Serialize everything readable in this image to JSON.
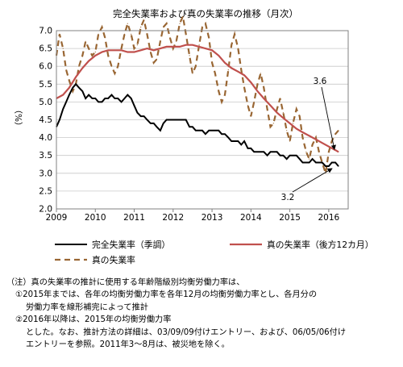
{
  "chart_data": {
    "type": "line",
    "title": "完全失業率および真の失業率の推移（月次）",
    "ylabel": "（%）",
    "xlabel": "",
    "ylim": [
      2.0,
      7.0
    ],
    "y_ticks": [
      "2.0",
      "2.5",
      "3.0",
      "3.5",
      "4.0",
      "4.5",
      "5.0",
      "5.5",
      "6.0",
      "6.5",
      "7.0"
    ],
    "x_ticks": [
      "2009",
      "2010",
      "2011",
      "2012",
      "2013",
      "2014",
      "2015",
      "2016"
    ],
    "xlim": [
      2009.0,
      2016.5
    ],
    "grid": true,
    "legend_position": "bottom",
    "colors": {
      "unemp": "#000000",
      "true12": "#c0504d",
      "true": "#996633"
    },
    "series": [
      {
        "name": "完全失業率（季調）",
        "key": "unemp",
        "style": "solid",
        "x": [
          2009.0,
          2009.08,
          2009.17,
          2009.25,
          2009.33,
          2009.42,
          2009.5,
          2009.58,
          2009.67,
          2009.75,
          2009.83,
          2009.92,
          2010.0,
          2010.08,
          2010.17,
          2010.25,
          2010.33,
          2010.42,
          2010.5,
          2010.58,
          2010.67,
          2010.75,
          2010.83,
          2010.92,
          2011.0,
          2011.08,
          2011.17,
          2011.25,
          2011.33,
          2011.42,
          2011.5,
          2011.58,
          2011.67,
          2011.75,
          2011.83,
          2011.92,
          2012.0,
          2012.08,
          2012.17,
          2012.25,
          2012.33,
          2012.42,
          2012.5,
          2012.58,
          2012.67,
          2012.75,
          2012.83,
          2012.92,
          2013.0,
          2013.08,
          2013.17,
          2013.25,
          2013.33,
          2013.42,
          2013.5,
          2013.58,
          2013.67,
          2013.75,
          2013.83,
          2013.92,
          2014.0,
          2014.08,
          2014.17,
          2014.25,
          2014.33,
          2014.42,
          2014.5,
          2014.58,
          2014.67,
          2014.75,
          2014.83,
          2014.92,
          2015.0,
          2015.08,
          2015.17,
          2015.25,
          2015.33,
          2015.42,
          2015.5,
          2015.58,
          2015.67,
          2015.75,
          2015.83,
          2015.92,
          2016.0,
          2016.08,
          2016.17,
          2016.25
        ],
        "values": [
          4.3,
          4.5,
          4.8,
          5.0,
          5.2,
          5.4,
          5.5,
          5.4,
          5.3,
          5.1,
          5.2,
          5.1,
          5.1,
          5.0,
          5.0,
          5.1,
          5.1,
          5.2,
          5.1,
          5.1,
          5.0,
          5.1,
          5.2,
          5.1,
          4.9,
          4.7,
          4.6,
          4.6,
          4.5,
          4.4,
          4.4,
          4.3,
          4.2,
          4.4,
          4.5,
          4.5,
          4.5,
          4.5,
          4.5,
          4.5,
          4.5,
          4.3,
          4.3,
          4.2,
          4.2,
          4.2,
          4.1,
          4.2,
          4.2,
          4.2,
          4.2,
          4.1,
          4.1,
          4.0,
          3.9,
          3.9,
          3.9,
          3.8,
          3.9,
          3.7,
          3.7,
          3.6,
          3.6,
          3.6,
          3.6,
          3.5,
          3.6,
          3.6,
          3.6,
          3.5,
          3.5,
          3.4,
          3.5,
          3.5,
          3.5,
          3.4,
          3.3,
          3.3,
          3.3,
          3.4,
          3.3,
          3.3,
          3.3,
          3.2,
          3.2,
          3.3,
          3.3,
          3.2
        ]
      },
      {
        "name": "真の失業率（後方12カ月）",
        "key": "true12",
        "style": "solid",
        "x": [
          2009.0,
          2009.17,
          2009.33,
          2009.5,
          2009.67,
          2009.83,
          2010.0,
          2010.17,
          2010.33,
          2010.5,
          2010.67,
          2010.83,
          2011.0,
          2011.17,
          2011.33,
          2011.5,
          2011.67,
          2011.83,
          2012.0,
          2012.17,
          2012.33,
          2012.5,
          2012.67,
          2012.83,
          2013.0,
          2013.17,
          2013.33,
          2013.5,
          2013.67,
          2013.83,
          2014.0,
          2014.17,
          2014.33,
          2014.5,
          2014.67,
          2014.83,
          2015.0,
          2015.17,
          2015.33,
          2015.5,
          2015.67,
          2015.83,
          2016.0,
          2016.17,
          2016.25
        ],
        "values": [
          5.1,
          5.2,
          5.4,
          5.7,
          5.95,
          6.15,
          6.3,
          6.4,
          6.45,
          6.45,
          6.45,
          6.4,
          6.4,
          6.45,
          6.5,
          6.45,
          6.5,
          6.55,
          6.55,
          6.55,
          6.6,
          6.6,
          6.55,
          6.5,
          6.45,
          6.3,
          6.1,
          5.95,
          5.85,
          5.75,
          5.55,
          5.3,
          5.1,
          4.9,
          4.7,
          4.55,
          4.4,
          4.25,
          4.15,
          4.05,
          3.95,
          3.85,
          3.75,
          3.65,
          3.6
        ]
      },
      {
        "name": "真の失業率",
        "key": "true",
        "style": "dashed",
        "x": [
          2009.0,
          2009.08,
          2009.17,
          2009.25,
          2009.33,
          2009.42,
          2009.5,
          2009.58,
          2009.67,
          2009.75,
          2009.83,
          2009.92,
          2010.0,
          2010.08,
          2010.17,
          2010.25,
          2010.33,
          2010.42,
          2010.5,
          2010.58,
          2010.67,
          2010.75,
          2010.83,
          2010.92,
          2011.0,
          2011.08,
          2011.17,
          2011.25,
          2011.33,
          2011.42,
          2011.5,
          2011.58,
          2011.67,
          2011.75,
          2011.83,
          2011.92,
          2012.0,
          2012.08,
          2012.17,
          2012.25,
          2012.33,
          2012.42,
          2012.5,
          2012.58,
          2012.67,
          2012.75,
          2012.83,
          2012.92,
          2013.0,
          2013.08,
          2013.17,
          2013.25,
          2013.33,
          2013.42,
          2013.5,
          2013.58,
          2013.67,
          2013.75,
          2013.83,
          2013.92,
          2014.0,
          2014.08,
          2014.17,
          2014.25,
          2014.33,
          2014.42,
          2014.5,
          2014.58,
          2014.67,
          2014.75,
          2014.83,
          2014.92,
          2015.0,
          2015.08,
          2015.17,
          2015.25,
          2015.33,
          2015.42,
          2015.5,
          2015.58,
          2015.67,
          2015.75,
          2015.83,
          2015.92,
          2016.0,
          2016.08,
          2016.17,
          2016.25
        ],
        "values": [
          6.3,
          6.9,
          6.5,
          5.9,
          5.6,
          5.3,
          5.5,
          6.0,
          6.3,
          6.7,
          6.5,
          6.3,
          6.4,
          6.9,
          7.1,
          6.8,
          6.3,
          6.0,
          5.8,
          6.0,
          6.5,
          6.9,
          7.2,
          6.9,
          6.5,
          6.6,
          7.1,
          7.3,
          6.9,
          6.4,
          6.1,
          6.2,
          6.7,
          7.1,
          7.2,
          6.8,
          6.5,
          6.7,
          7.2,
          7.4,
          6.9,
          6.3,
          5.8,
          6.0,
          6.6,
          7.1,
          7.2,
          6.8,
          6.1,
          5.8,
          5.3,
          5.0,
          5.2,
          5.9,
          6.6,
          6.9,
          6.5,
          5.9,
          5.4,
          4.9,
          4.6,
          5.0,
          5.5,
          5.8,
          5.4,
          4.8,
          4.3,
          4.4,
          4.8,
          5.1,
          4.7,
          4.2,
          3.9,
          4.4,
          4.8,
          4.6,
          4.0,
          3.6,
          3.4,
          3.8,
          4.0,
          3.6,
          3.3,
          3.0,
          3.6,
          3.9,
          4.1,
          4.2
        ]
      }
    ],
    "annotations": [
      {
        "text": "3.6",
        "x": 2016.25,
        "y": 3.6
      },
      {
        "text": "3.2",
        "x": 2016.25,
        "y": 3.2
      }
    ]
  },
  "notes": {
    "line1": "（注）真の失業率の推計に使用する年齢階級別均衡労働力率は、",
    "line2": "①2015年までは、各年の均衡労働力率を各年12月の均衡労働力率とし、各月分の",
    "line3": "労働力率を線形補完によって推計",
    "line4": "②2016年以降は、2015年の均衡労働力率",
    "line5": "とした。なお、推計方法の詳細は、03/09/09付けエントリー、および、06/05/06付け",
    "line6": "エントリーを参照。2011年3～8月は、被災地を除く。"
  }
}
